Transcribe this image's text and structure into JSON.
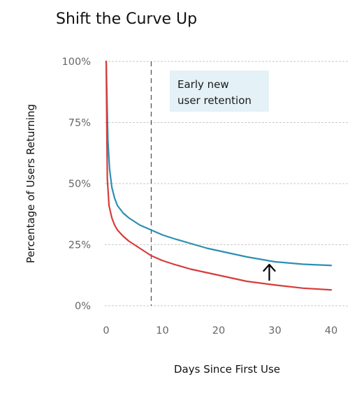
{
  "chart_data": {
    "type": "line",
    "title": "Shift the Curve Up",
    "xlabel": "Days Since First Use",
    "ylabel": "Percentage of Users Returning",
    "xlim": [
      0,
      40
    ],
    "ylim": [
      0,
      100
    ],
    "x_ticks": [
      "0",
      "10",
      "20",
      "30",
      "40"
    ],
    "y_ticks": [
      "0%",
      "25%",
      "50%",
      "75%",
      "100%"
    ],
    "grid": "horizontal",
    "annotation": {
      "line1": "Early new",
      "line2": "user retention",
      "marker_x": 8
    },
    "arrow": {
      "direction": "up",
      "x": 29
    },
    "series": [
      {
        "color": "#2b8fb3",
        "x": [
          0,
          0.3,
          0.6,
          1,
          1.5,
          2,
          3,
          4,
          5,
          6,
          7,
          8,
          10,
          12,
          15,
          18,
          20,
          25,
          30,
          35,
          40
        ],
        "values": [
          100,
          68,
          56,
          48.5,
          44,
          41,
          38,
          36,
          34.5,
          33,
          32,
          31,
          29,
          27.5,
          25.5,
          23.5,
          22.5,
          20,
          18,
          17,
          16.5
        ]
      },
      {
        "color": "#d63c3c",
        "x": [
          0,
          0.2,
          0.5,
          1,
          1.5,
          2,
          3,
          4,
          5,
          6,
          7,
          8,
          10,
          12,
          15,
          18,
          20,
          25,
          30,
          35,
          40
        ],
        "values": [
          100,
          52,
          41,
          36,
          33,
          31,
          28.5,
          26.5,
          25,
          23.5,
          22,
          20.5,
          18.5,
          17,
          15,
          13.5,
          12.5,
          10,
          8.5,
          7.2,
          6.5
        ]
      }
    ]
  }
}
